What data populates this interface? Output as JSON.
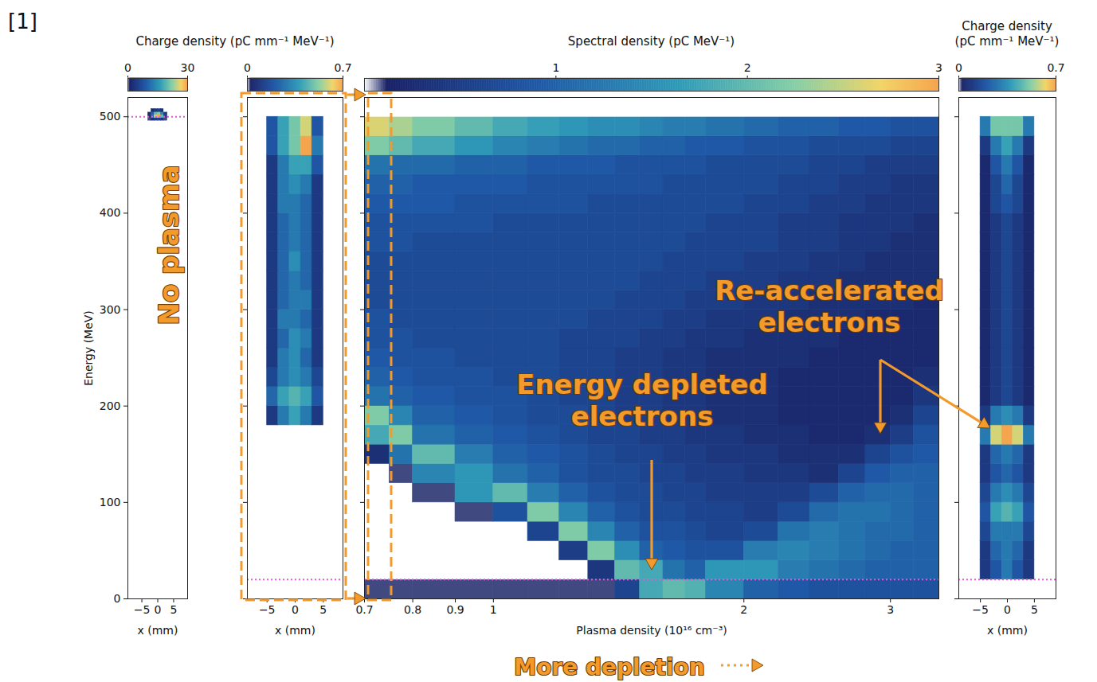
{
  "figure_label": "[1]",
  "annotations": [
    {
      "text": "No plasma",
      "color": "#f39a2c"
    },
    {
      "text": "Energy depleted\nelectrons",
      "color": "#f39a2c"
    },
    {
      "text": "Re-accelerated\nelectrons",
      "color": "#f39a2c"
    },
    {
      "text": "More depletion",
      "color": "#f39a2c"
    }
  ],
  "chart_data": [
    {
      "type": "heatmap",
      "x_label": "x (mm)",
      "y_label": "Energy (MeV)",
      "xlim": [
        -9.4,
        9.4
      ],
      "ylim": [
        0,
        520
      ],
      "xticks": [
        {
          "value": -5,
          "label": "−5"
        },
        0,
        5
      ],
      "yticks": [
        0,
        100,
        200,
        300,
        400,
        500
      ],
      "cells": {
        "x_edges": [
          -3,
          -2,
          -1,
          0,
          1,
          2,
          3
        ],
        "y_edges": [
          496,
          499,
          502,
          505,
          508
        ],
        "values": [
          [
            1,
            3,
            5,
            6,
            4,
            1
          ],
          [
            3,
            12,
            26,
            30,
            20,
            6
          ],
          [
            2,
            10,
            20,
            22,
            14,
            4
          ],
          [
            0,
            2,
            4,
            5,
            3,
            0
          ]
        ]
      },
      "colorbar": {
        "label": "Charge density (pC mm⁻¹ MeV⁻¹)",
        "range": [
          0,
          30
        ],
        "ticks": [
          0,
          30
        ]
      },
      "reference_lines": {
        "values": [
          500
        ],
        "color": "#d65fd6",
        "line_style": "dotted"
      }
    },
    {
      "type": "heatmap",
      "x_label": "x (mm)",
      "tick_labels": "x",
      "xlim": [
        -8.5,
        8.5
      ],
      "ylim": [
        0,
        520
      ],
      "xticks": [
        {
          "value": -5,
          "label": "−5"
        },
        0,
        5
      ],
      "yticks": [
        0,
        100,
        200,
        300,
        400,
        500
      ],
      "cells": {
        "x_edges": [
          -5,
          -3,
          -1,
          1,
          3,
          5
        ],
        "y_edges": [
          180,
          200,
          220,
          240,
          260,
          280,
          300,
          320,
          340,
          360,
          380,
          400,
          420,
          440,
          460,
          480,
          500
        ],
        "values": [
          [
            0.1,
            0.3,
            0.4,
            0.3,
            0.1
          ],
          [
            0.25,
            0.4,
            0.45,
            0.4,
            0.2
          ],
          [
            0.15,
            0.3,
            0.35,
            0.3,
            0.15
          ],
          [
            0.1,
            0.3,
            0.35,
            0.25,
            0.1
          ],
          [
            0.1,
            0.25,
            0.35,
            0.3,
            0.1
          ],
          [
            0.1,
            0.3,
            0.3,
            0.25,
            0.1
          ],
          [
            0.1,
            0.25,
            0.3,
            0.3,
            0.1
          ],
          [
            0.1,
            0.25,
            0.3,
            0.25,
            0.1
          ],
          [
            0.1,
            0.25,
            0.35,
            0.25,
            0.1
          ],
          [
            0.1,
            0.25,
            0.3,
            0.25,
            0.1
          ],
          [
            0.1,
            0.25,
            0.3,
            0.25,
            0.1
          ],
          [
            0.1,
            0.3,
            0.3,
            0.25,
            0.1
          ],
          [
            0.1,
            0.3,
            0.35,
            0.3,
            0.1
          ],
          [
            0.1,
            0.3,
            0.4,
            0.4,
            0.2
          ],
          [
            0.2,
            0.4,
            0.5,
            0.7,
            0.3
          ],
          [
            0.2,
            0.4,
            0.5,
            0.6,
            0.2
          ]
        ]
      },
      "colorbar": {
        "range": [
          0,
          0.7
        ],
        "ticks": [
          0,
          0.7
        ]
      },
      "reference_lines": {
        "values": [
          20
        ],
        "color": "#d65fd6",
        "line_style": "dotted"
      }
    },
    {
      "type": "heatmap",
      "x_label": "Plasma density (10¹⁶ cm⁻³)",
      "tick_labels": "x",
      "log": "x",
      "xlim": [
        0.7,
        3.43
      ],
      "ylim": [
        0,
        520
      ],
      "xticks": [
        0.7,
        0.8,
        0.9,
        1,
        2,
        3
      ],
      "yticks": [
        0,
        100,
        200,
        300,
        400,
        500
      ],
      "cells": {
        "x_edges": [
          0.7,
          0.75,
          0.8,
          0.9,
          1.0,
          1.1,
          1.2,
          1.3,
          1.4,
          1.5,
          1.6,
          1.7,
          1.8,
          2.0,
          2.2,
          2.4,
          2.6,
          2.8,
          3.0,
          3.2,
          3.43
        ],
        "y_edges": [
          0,
          20,
          40,
          60,
          80,
          100,
          120,
          140,
          160,
          180,
          200,
          220,
          240,
          260,
          280,
          300,
          320,
          340,
          360,
          380,
          400,
          420,
          440,
          460,
          480,
          500,
          520
        ],
        "values": [
          [
            0.1,
            0.1,
            0.1,
            0.1,
            0.1,
            0.1,
            0.1,
            0.1,
            0.6,
            1.8,
            2.0,
            1.9,
            1.4,
            1.0,
            0.9,
            0.8,
            0.8,
            0.8,
            0.8,
            0.8
          ],
          [
            0,
            0,
            0,
            0,
            0,
            0,
            0,
            0.4,
            2.0,
            1.8,
            1.2,
            1.0,
            1.6,
            1.6,
            1.3,
            1.2,
            1.1,
            1.0,
            1.0,
            1.0
          ],
          [
            0,
            0,
            0,
            0,
            0,
            0,
            0.5,
            2.2,
            1.5,
            1.0,
            0.9,
            0.8,
            0.8,
            1.3,
            1.4,
            1.3,
            1.2,
            1.1,
            1.0,
            1.0
          ],
          [
            0,
            0,
            0,
            0,
            0,
            0.6,
            2.2,
            1.4,
            1.0,
            0.8,
            0.8,
            0.7,
            0.6,
            0.7,
            1.2,
            1.3,
            1.2,
            1.1,
            1.1,
            1.0
          ],
          [
            0,
            0,
            0,
            0.1,
            0.8,
            2.2,
            1.4,
            1.0,
            0.8,
            0.7,
            0.7,
            0.6,
            0.6,
            0.5,
            0.7,
            1.1,
            1.2,
            1.2,
            1.1,
            1.0
          ],
          [
            0,
            0,
            0.1,
            1.6,
            2.0,
            1.3,
            1.0,
            0.8,
            0.7,
            0.7,
            0.6,
            0.6,
            0.5,
            0.5,
            0.5,
            0.7,
            1.0,
            1.1,
            1.1,
            1.0
          ],
          [
            0,
            0.1,
            1.4,
            1.6,
            1.2,
            1.0,
            0.8,
            0.7,
            0.7,
            0.6,
            0.6,
            0.5,
            0.5,
            0.4,
            0.4,
            0.3,
            0.6,
            0.9,
            1.0,
            1.0
          ],
          [
            0.3,
            1.2,
            2.0,
            1.3,
            1.0,
            0.9,
            0.8,
            0.7,
            0.6,
            0.6,
            0.5,
            0.5,
            0.4,
            0.4,
            0.3,
            0.3,
            0.3,
            0.6,
            0.8,
            0.9
          ],
          [
            1.8,
            2.2,
            1.2,
            1.0,
            0.9,
            0.8,
            0.7,
            0.6,
            0.6,
            0.5,
            0.5,
            0.4,
            0.4,
            0.3,
            0.3,
            0.2,
            0.2,
            0.3,
            0.5,
            0.8
          ],
          [
            2.2,
            1.4,
            1.0,
            0.9,
            0.8,
            0.7,
            0.7,
            0.6,
            0.5,
            0.5,
            0.4,
            0.4,
            0.3,
            0.3,
            0.2,
            0.2,
            0.2,
            0.2,
            0.3,
            0.6
          ],
          [
            1.2,
            1.0,
            0.9,
            0.8,
            0.8,
            0.7,
            0.6,
            0.6,
            0.5,
            0.5,
            0.4,
            0.4,
            0.3,
            0.3,
            0.2,
            0.2,
            0.2,
            0.2,
            0.2,
            0.4
          ],
          [
            1.0,
            0.9,
            0.8,
            0.8,
            0.7,
            0.7,
            0.6,
            0.6,
            0.5,
            0.5,
            0.4,
            0.4,
            0.3,
            0.3,
            0.2,
            0.2,
            0.2,
            0.2,
            0.2,
            0.3
          ],
          [
            0.9,
            0.8,
            0.8,
            0.7,
            0.7,
            0.7,
            0.6,
            0.6,
            0.5,
            0.5,
            0.4,
            0.4,
            0.3,
            0.3,
            0.3,
            0.2,
            0.2,
            0.2,
            0.2,
            0.2
          ],
          [
            0.8,
            0.8,
            0.7,
            0.7,
            0.7,
            0.7,
            0.6,
            0.6,
            0.6,
            0.5,
            0.5,
            0.4,
            0.4,
            0.3,
            0.3,
            0.3,
            0.2,
            0.2,
            0.2,
            0.2
          ],
          [
            0.8,
            0.7,
            0.7,
            0.7,
            0.7,
            0.7,
            0.7,
            0.6,
            0.6,
            0.6,
            0.5,
            0.5,
            0.4,
            0.4,
            0.3,
            0.3,
            0.3,
            0.2,
            0.2,
            0.2
          ],
          [
            0.7,
            0.7,
            0.7,
            0.7,
            0.7,
            0.7,
            0.7,
            0.7,
            0.6,
            0.6,
            0.6,
            0.5,
            0.5,
            0.4,
            0.4,
            0.3,
            0.3,
            0.3,
            0.3,
            0.2
          ],
          [
            0.7,
            0.7,
            0.7,
            0.7,
            0.7,
            0.7,
            0.7,
            0.7,
            0.7,
            0.6,
            0.6,
            0.6,
            0.5,
            0.5,
            0.4,
            0.4,
            0.3,
            0.3,
            0.3,
            0.3
          ],
          [
            0.7,
            0.7,
            0.7,
            0.7,
            0.7,
            0.7,
            0.7,
            0.7,
            0.7,
            0.7,
            0.6,
            0.6,
            0.6,
            0.5,
            0.5,
            0.4,
            0.4,
            0.3,
            0.3,
            0.3
          ],
          [
            0.8,
            0.8,
            0.7,
            0.7,
            0.7,
            0.7,
            0.7,
            0.7,
            0.7,
            0.7,
            0.7,
            0.6,
            0.6,
            0.6,
            0.5,
            0.5,
            0.4,
            0.4,
            0.3,
            0.3
          ],
          [
            0.8,
            0.8,
            0.8,
            0.8,
            0.7,
            0.7,
            0.7,
            0.7,
            0.7,
            0.7,
            0.7,
            0.7,
            0.6,
            0.6,
            0.5,
            0.5,
            0.4,
            0.4,
            0.4,
            0.3
          ],
          [
            0.9,
            0.9,
            0.9,
            0.8,
            0.8,
            0.8,
            0.8,
            0.7,
            0.7,
            0.7,
            0.7,
            0.7,
            0.7,
            0.6,
            0.6,
            0.5,
            0.5,
            0.4,
            0.4,
            0.4
          ],
          [
            1.0,
            1.0,
            0.9,
            0.9,
            0.9,
            0.8,
            0.8,
            0.8,
            0.8,
            0.8,
            0.7,
            0.7,
            0.7,
            0.7,
            0.6,
            0.6,
            0.5,
            0.5,
            0.4,
            0.4
          ],
          [
            1.2,
            1.1,
            1.1,
            1.0,
            1.0,
            0.9,
            0.9,
            0.9,
            0.8,
            0.8,
            0.8,
            0.8,
            0.7,
            0.7,
            0.7,
            0.6,
            0.6,
            0.5,
            0.5,
            0.5
          ],
          [
            2.2,
            2.0,
            1.8,
            1.6,
            1.4,
            1.3,
            1.2,
            1.1,
            1.1,
            1.0,
            1.0,
            0.9,
            0.9,
            0.8,
            0.8,
            0.7,
            0.7,
            0.7,
            0.6,
            0.6
          ],
          [
            2.6,
            2.4,
            2.2,
            2.0,
            1.8,
            1.7,
            1.6,
            1.5,
            1.5,
            1.4,
            1.3,
            1.3,
            1.2,
            1.1,
            1.0,
            1.0,
            0.9,
            0.9,
            0.8,
            0.8
          ],
          [
            0,
            0,
            0,
            0,
            0,
            0,
            0,
            0,
            0,
            0,
            0,
            0,
            0,
            0,
            0,
            0,
            0,
            0,
            0,
            0
          ]
        ]
      },
      "colorbar": {
        "label": "Spectral density (pC MeV⁻¹)",
        "range": [
          0,
          3
        ],
        "ticks": [
          1,
          2,
          3
        ]
      },
      "reference_lines": {
        "values": [
          20
        ],
        "color": "#d65fd6",
        "line_style": "dotted"
      }
    },
    {
      "type": "heatmap",
      "x_label": "x (mm)",
      "tick_labels": "x",
      "xlim": [
        -9,
        9
      ],
      "ylim": [
        0,
        520
      ],
      "xticks": [
        {
          "value": -5,
          "label": "−5"
        },
        0,
        5
      ],
      "yticks": [
        0,
        100,
        200,
        300,
        400,
        500
      ],
      "cells": {
        "x_edges": [
          -5,
          -3,
          -1,
          1,
          3,
          5
        ],
        "y_edges": [
          20,
          40,
          60,
          80,
          100,
          120,
          140,
          160,
          180,
          200,
          220,
          240,
          260,
          280,
          300,
          320,
          340,
          360,
          380,
          400,
          420,
          440,
          460,
          480,
          500
        ],
        "values": [
          [
            0.1,
            0.2,
            0.3,
            0.2,
            0.1
          ],
          [
            0.1,
            0.25,
            0.3,
            0.25,
            0.1
          ],
          [
            0.15,
            0.3,
            0.3,
            0.3,
            0.15
          ],
          [
            0.2,
            0.4,
            0.45,
            0.4,
            0.2
          ],
          [
            0.15,
            0.3,
            0.35,
            0.3,
            0.15
          ],
          [
            0.1,
            0.2,
            0.25,
            0.2,
            0.1
          ],
          [
            0.1,
            0.25,
            0.3,
            0.25,
            0.1
          ],
          [
            0.3,
            0.6,
            0.7,
            0.6,
            0.3
          ],
          [
            0.1,
            0.3,
            0.35,
            0.3,
            0.1
          ],
          [
            0.05,
            0.1,
            0.15,
            0.1,
            0.05
          ],
          [
            0.05,
            0.1,
            0.15,
            0.1,
            0.05
          ],
          [
            0.05,
            0.1,
            0.15,
            0.1,
            0.05
          ],
          [
            0.05,
            0.1,
            0.15,
            0.1,
            0.05
          ],
          [
            0.05,
            0.1,
            0.15,
            0.1,
            0.05
          ],
          [
            0.05,
            0.1,
            0.15,
            0.1,
            0.05
          ],
          [
            0.05,
            0.1,
            0.15,
            0.1,
            0.05
          ],
          [
            0.05,
            0.1,
            0.15,
            0.1,
            0.05
          ],
          [
            0.05,
            0.1,
            0.15,
            0.1,
            0.05
          ],
          [
            0.05,
            0.1,
            0.15,
            0.1,
            0.05
          ],
          [
            0.05,
            0.15,
            0.2,
            0.15,
            0.05
          ],
          [
            0.05,
            0.15,
            0.25,
            0.15,
            0.05
          ],
          [
            0.05,
            0.2,
            0.3,
            0.2,
            0.05
          ],
          [
            0.1,
            0.3,
            0.4,
            0.3,
            0.1
          ],
          [
            0.3,
            0.5,
            0.5,
            0.5,
            0.3
          ]
        ]
      },
      "colorbar": {
        "label": "Charge density (pC mm⁻¹ MeV⁻¹)",
        "range": [
          0,
          0.7
        ],
        "ticks": [
          0,
          0.7
        ]
      },
      "reference_lines": {
        "values": [
          20
        ],
        "color": "#d65fd6",
        "line_style": "dotted"
      }
    }
  ]
}
